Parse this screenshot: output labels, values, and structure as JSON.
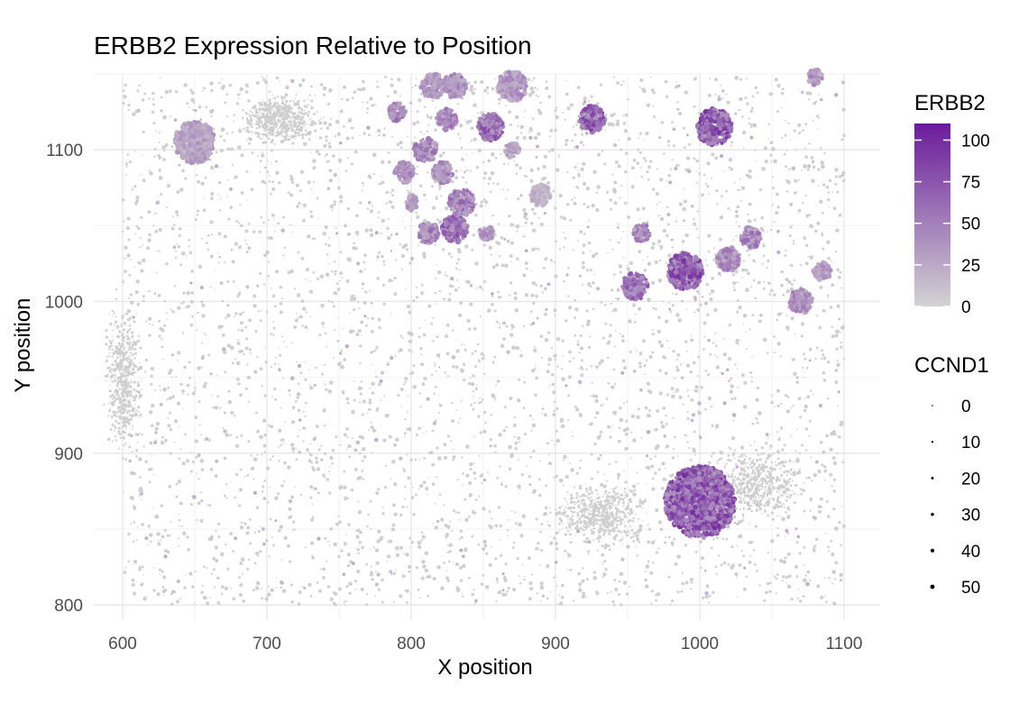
{
  "chart_data": {
    "type": "scatter",
    "title": "ERBB2 Expression Relative to Position",
    "xlabel": "X position",
    "ylabel": "Y position",
    "xlim": [
      580,
      1125
    ],
    "ylim": [
      790,
      1150
    ],
    "x_ticks": [
      600,
      700,
      800,
      900,
      1000,
      1100
    ],
    "y_ticks": [
      800,
      900,
      1000,
      1100
    ],
    "grid": true,
    "color_legend": {
      "title": "ERBB2",
      "ticks": [
        0,
        25,
        50,
        75,
        100
      ],
      "range": [
        0,
        110
      ],
      "low_color": "#d3d3d3",
      "high_color": "#6a1b9a"
    },
    "size_legend": {
      "title": "CCND1",
      "values": [
        0,
        10,
        20,
        30,
        40,
        50
      ]
    },
    "point_color_default": "#cfcfcf",
    "hotspots": [
      {
        "x": 650,
        "y": 1105,
        "radius": 14,
        "erbb2": 30
      },
      {
        "x": 790,
        "y": 1125,
        "radius": 6,
        "erbb2": 45
      },
      {
        "x": 815,
        "y": 1142,
        "radius": 8,
        "erbb2": 35
      },
      {
        "x": 830,
        "y": 1142,
        "radius": 8,
        "erbb2": 40
      },
      {
        "x": 825,
        "y": 1120,
        "radius": 7,
        "erbb2": 45
      },
      {
        "x": 810,
        "y": 1100,
        "radius": 8,
        "erbb2": 45
      },
      {
        "x": 795,
        "y": 1085,
        "radius": 7,
        "erbb2": 40
      },
      {
        "x": 800,
        "y": 1065,
        "radius": 5,
        "erbb2": 35
      },
      {
        "x": 822,
        "y": 1085,
        "radius": 7,
        "erbb2": 40
      },
      {
        "x": 835,
        "y": 1065,
        "radius": 9,
        "erbb2": 50
      },
      {
        "x": 830,
        "y": 1048,
        "radius": 9,
        "erbb2": 60
      },
      {
        "x": 812,
        "y": 1045,
        "radius": 7,
        "erbb2": 45
      },
      {
        "x": 852,
        "y": 1045,
        "radius": 5,
        "erbb2": 35
      },
      {
        "x": 855,
        "y": 1115,
        "radius": 9,
        "erbb2": 60
      },
      {
        "x": 870,
        "y": 1100,
        "radius": 5,
        "erbb2": 30
      },
      {
        "x": 870,
        "y": 1142,
        "radius": 10,
        "erbb2": 35
      },
      {
        "x": 890,
        "y": 1070,
        "radius": 7,
        "erbb2": 20
      },
      {
        "x": 925,
        "y": 1120,
        "radius": 9,
        "erbb2": 65
      },
      {
        "x": 1010,
        "y": 1115,
        "radius": 12,
        "erbb2": 70
      },
      {
        "x": 960,
        "y": 1045,
        "radius": 6,
        "erbb2": 45
      },
      {
        "x": 955,
        "y": 1010,
        "radius": 9,
        "erbb2": 55
      },
      {
        "x": 990,
        "y": 1020,
        "radius": 12,
        "erbb2": 70
      },
      {
        "x": 1020,
        "y": 1028,
        "radius": 8,
        "erbb2": 45
      },
      {
        "x": 1035,
        "y": 1042,
        "radius": 7,
        "erbb2": 45
      },
      {
        "x": 1070,
        "y": 1000,
        "radius": 8,
        "erbb2": 40
      },
      {
        "x": 1085,
        "y": 1020,
        "radius": 6,
        "erbb2": 35
      },
      {
        "x": 1080,
        "y": 1148,
        "radius": 5,
        "erbb2": 35
      },
      {
        "x": 1000,
        "y": 868,
        "radius": 24,
        "erbb2": 70
      }
    ]
  }
}
